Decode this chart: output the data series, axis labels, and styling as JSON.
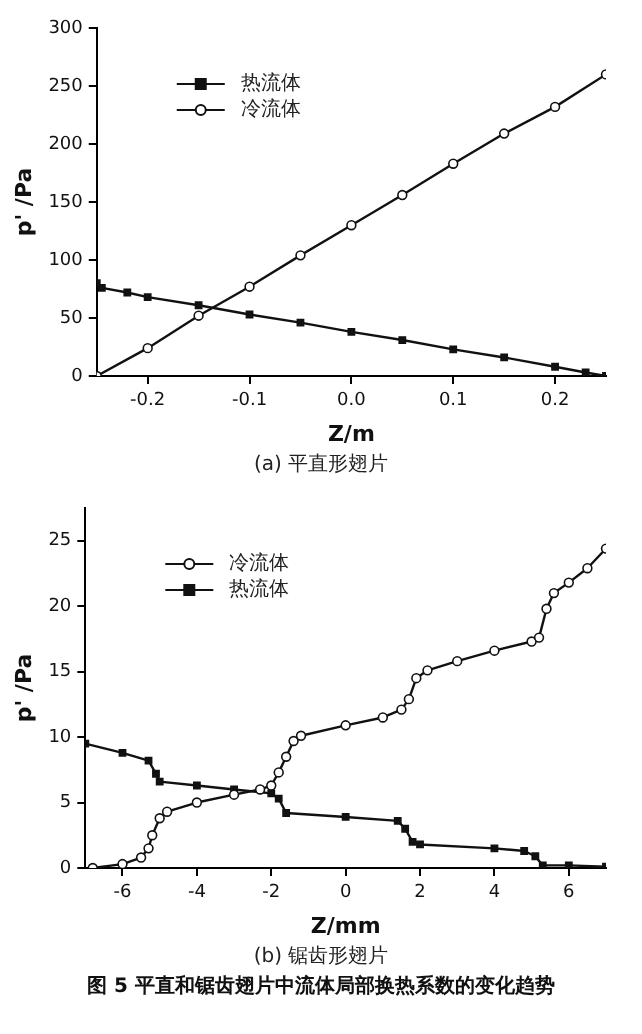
{
  "chart_data": [
    {
      "type": "line",
      "subtitle": "(a) 平直形翅片",
      "xlabel": "Z/m",
      "ylabel": "p' /Pa",
      "legend": "top left",
      "grid": false,
      "xlim": [
        -0.25,
        0.25
      ],
      "xticks": [
        -0.2,
        -0.1,
        {
          "value": 0,
          "label": "0.0"
        },
        0.1,
        0.2
      ],
      "ylim": [
        0,
        300
      ],
      "yticks": [
        0,
        50,
        100,
        150,
        200,
        250,
        300
      ],
      "series": [
        {
          "name": "热流体",
          "color": "#111111",
          "marker": "square",
          "x": [
            -0.25,
            -0.245,
            -0.22,
            -0.2,
            -0.15,
            -0.1,
            -0.05,
            0,
            0.05,
            0.1,
            0.15,
            0.2,
            0.23,
            0.25
          ],
          "values": [
            80,
            76,
            72,
            68,
            61,
            53,
            46,
            38,
            31,
            23,
            16,
            8,
            3,
            0
          ]
        },
        {
          "name": "冷流体",
          "color": "#111111",
          "marker": "circle",
          "x": [
            -0.25,
            -0.2,
            -0.15,
            -0.1,
            -0.05,
            0,
            0.05,
            0.1,
            0.15,
            0.2,
            0.25
          ],
          "values": [
            0,
            24,
            52,
            77,
            104,
            130,
            156,
            183,
            209,
            232,
            260
          ]
        }
      ]
    },
    {
      "type": "line",
      "subtitle": "(b) 锯齿形翅片",
      "annotations": [
        "图 5 平直和锯齿翅片中流体局部换热系数的变化趋势"
      ],
      "xlabel": "Z/mm",
      "ylabel": "p' /Pa",
      "legend": "top left",
      "grid": false,
      "xlim": [
        -7,
        7
      ],
      "xticks": [
        -6,
        -4,
        -2,
        0,
        2,
        4,
        6
      ],
      "ylim": [
        0,
        27.5
      ],
      "yticks": [
        0,
        5,
        10,
        15,
        20,
        25
      ],
      "series": [
        {
          "name": "冷流体",
          "color": "#111111",
          "marker": "circle",
          "x": [
            -6.8,
            -6,
            -5.5,
            -5.3,
            -5.2,
            -5,
            -4.8,
            -4,
            -3,
            -2.3,
            -2,
            -1.8,
            -1.6,
            -1.4,
            -1.2,
            0,
            1,
            1.5,
            1.7,
            1.9,
            2.2,
            3,
            4,
            5,
            5.2,
            5.4,
            5.6,
            6,
            6.5,
            7
          ],
          "values": [
            0,
            0.3,
            0.8,
            1.5,
            2.5,
            3.8,
            4.3,
            5,
            5.6,
            6,
            6.3,
            7.3,
            8.5,
            9.7,
            10.1,
            10.9,
            11.5,
            12.1,
            12.9,
            14.5,
            15.1,
            15.8,
            16.6,
            17.3,
            17.6,
            19.8,
            21,
            21.8,
            22.9,
            24.4
          ]
        },
        {
          "name": "热流体",
          "color": "#111111",
          "marker": "square",
          "x": [
            -7,
            -6,
            -5.3,
            -5.1,
            -5,
            -4,
            -3,
            -2,
            -1.8,
            -1.6,
            0,
            1.4,
            1.6,
            1.8,
            2,
            4,
            4.8,
            5.1,
            5.3,
            6,
            7
          ],
          "values": [
            9.5,
            8.8,
            8.2,
            7.2,
            6.6,
            6.3,
            6,
            5.7,
            5.3,
            4.2,
            3.9,
            3.6,
            3,
            2,
            1.8,
            1.5,
            1.3,
            0.9,
            0.2,
            0.2,
            0.1
          ]
        }
      ]
    }
  ]
}
